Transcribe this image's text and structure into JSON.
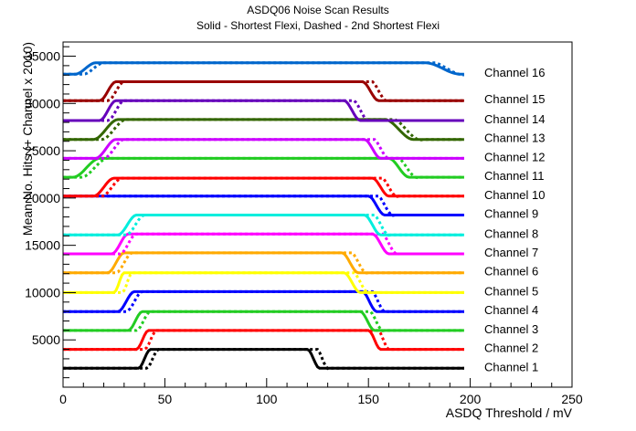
{
  "chart_data": {
    "type": "line",
    "title": "ASDQ06   Noise Scan Results",
    "subtitle": "Solid - Shortest Flexi, Dashed - 2nd Shortest Flexi",
    "xlabel": "ASDQ Threshold / mV",
    "ylabel": "Mean No. Hits (+ Channel x 2010)",
    "xlim": [
      0,
      250
    ],
    "ylim": [
      0,
      36500
    ],
    "x_ticks": [
      0,
      50,
      100,
      150,
      200,
      250
    ],
    "y_ticks": [
      5000,
      10000,
      15000,
      20000,
      25000,
      30000,
      35000
    ],
    "grid": false,
    "legend": "right, inline labels",
    "series": [
      {
        "name": "Channel 1",
        "color": "#000000",
        "base": 2000,
        "high": 4000,
        "rise": [
          37,
          43
        ],
        "fall": [
          120,
          126
        ]
      },
      {
        "name": "Channel 2",
        "color": "#ff0000",
        "base": 4000,
        "high": 6000,
        "rise": [
          36,
          42
        ],
        "fall": [
          150,
          156
        ]
      },
      {
        "name": "Channel 3",
        "color": "#22cc22",
        "base": 6000,
        "high": 8000,
        "rise": [
          32,
          39
        ],
        "fall": [
          146,
          153
        ]
      },
      {
        "name": "Channel 4",
        "color": "#0000ff",
        "base": 8000,
        "high": 10100,
        "rise": [
          27,
          35
        ],
        "fall": [
          147,
          154
        ]
      },
      {
        "name": "Channel 5",
        "color": "#ffff00",
        "base": 10000,
        "high": 12100,
        "rise": [
          25,
          30
        ],
        "fall": [
          138,
          146
        ]
      },
      {
        "name": "Channel 6",
        "color": "#ffaa00",
        "base": 12100,
        "high": 14200,
        "rise": [
          22,
          30
        ],
        "fall": [
          137,
          145
        ]
      },
      {
        "name": "Channel 7",
        "color": "#ff00ff",
        "base": 14100,
        "high": 16200,
        "rise": [
          24,
          32
        ],
        "fall": [
          152,
          160
        ]
      },
      {
        "name": "Channel 8",
        "color": "#00eedd",
        "base": 16100,
        "high": 18200,
        "rise": [
          27,
          36
        ],
        "fall": [
          148,
          156
        ]
      },
      {
        "name": "Channel 9",
        "color": "#0000ff",
        "base": 18200,
        "high": 20200,
        "rise": [
          0,
          1
        ],
        "fall": [
          150,
          158
        ]
      },
      {
        "name": "Channel 10",
        "color": "#ff0000",
        "base": 20200,
        "high": 22100,
        "rise": [
          15,
          25
        ],
        "fall": [
          152,
          160
        ]
      },
      {
        "name": "Channel 11",
        "color": "#22cc22",
        "base": 22200,
        "high": 24200,
        "rise": [
          5,
          18
        ],
        "fall": [
          160,
          170
        ]
      },
      {
        "name": "Channel 12",
        "color": "#cc00ff",
        "base": 24200,
        "high": 26200,
        "rise": [
          16,
          26
        ],
        "fall": [
          148,
          156
        ]
      },
      {
        "name": "Channel 13",
        "color": "#336600",
        "base": 26200,
        "high": 28300,
        "rise": [
          15,
          27
        ],
        "fall": [
          158,
          172
        ]
      },
      {
        "name": "Channel 14",
        "color": "#6600bb",
        "base": 28200,
        "high": 30300,
        "rise": [
          18,
          26
        ],
        "fall": [
          138,
          146
        ]
      },
      {
        "name": "Channel 15",
        "color": "#990000",
        "base": 30300,
        "high": 32300,
        "rise": [
          18,
          26
        ],
        "fall": [
          147,
          155
        ]
      },
      {
        "name": "Channel 16",
        "color": "#0066cc",
        "base": 33100,
        "high": 34300,
        "rise": [
          6,
          16
        ],
        "fall": [
          178,
          195
        ]
      }
    ]
  }
}
